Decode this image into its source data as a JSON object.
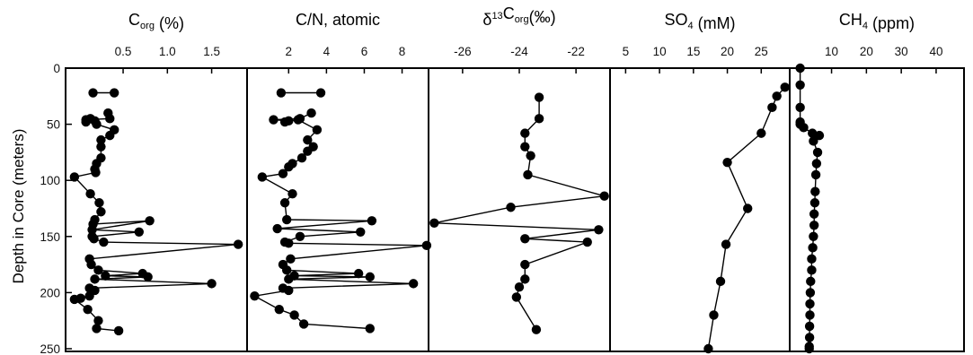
{
  "chart_data": {
    "type": "scatter",
    "y_axis": {
      "label": "Depth in Core (meters)",
      "range": [
        0,
        250
      ],
      "inverted": true,
      "ticks": [
        "0",
        "50",
        "100",
        "150",
        "200",
        "250"
      ]
    },
    "panels": [
      {
        "id": "corg",
        "title_parts": [
          {
            "t": "C"
          },
          {
            "t": "org",
            "s": "sub"
          },
          {
            "t": " (%)"
          }
        ],
        "xlim": [
          -0.15,
          1.9
        ],
        "ticks": [
          {
            "v": 0.5,
            "l": "0.5"
          },
          {
            "v": 1.0,
            "l": "1.0"
          },
          {
            "v": 1.5,
            "l": "1.5"
          }
        ],
        "series": [
          {
            "x": [
              0.16,
              0.4
            ],
            "y": [
              22,
              22
            ]
          },
          {
            "x": [
              0.33,
              0.35,
              0.08,
              0.08,
              0.18,
              0.13,
              0.2,
              0.4,
              0.35,
              0.25,
              0.25,
              0.25,
              0.2,
              0.18,
              0.19,
              -0.05,
              0.13,
              0.23,
              0.25,
              0.18,
              0.16,
              0.8,
              0.15,
              0.68,
              0.15,
              0.17,
              0.28,
              1.8,
              0.12,
              0.14,
              0.22,
              0.72,
              0.3,
              0.78,
              0.18,
              1.5,
              0.12,
              0.18,
              0.12,
              0.02,
              -0.05,
              0.1,
              0.22,
              0.2,
              0.45
            ],
            "y": [
              40,
              45,
              46,
              48,
              47,
              45,
              50,
              55,
              60,
              64,
              70,
              80,
              85,
              90,
              93,
              97,
              112,
              120,
              128,
              135,
              139,
              136,
              144,
              146,
              150,
              152,
              155,
              157,
              170,
              175,
              180,
              183,
              185,
              186,
              188,
              192,
              196,
              198,
              203,
              205,
              206,
              215,
              225,
              232,
              234
            ]
          }
        ]
      },
      {
        "id": "cn",
        "title_parts": [
          {
            "t": "C/N, atomic"
          }
        ],
        "xlim": [
          -0.2,
          9.4
        ],
        "ticks": [
          {
            "v": 2,
            "l": "2"
          },
          {
            "v": 4,
            "l": "4"
          },
          {
            "v": 6,
            "l": "6"
          },
          {
            "v": 8,
            "l": "8"
          }
        ],
        "series": [
          {
            "x": [
              1.6,
              3.7
            ],
            "y": [
              22,
              22
            ]
          },
          {
            "x": [
              3.2,
              2.6,
              1.2,
              2.0,
              1.8,
              2.5,
              3.5,
              3.0,
              3.3,
              3.0,
              2.7,
              2.2,
              2.0,
              1.7,
              0.6,
              2.2,
              1.8,
              1.9,
              6.4,
              1.4,
              5.8,
              2.6,
              1.8,
              2.0,
              9.3,
              2.1,
              1.7,
              1.9,
              5.7,
              2.3,
              6.3,
              2.0,
              8.6,
              1.7,
              2.0,
              0.2,
              1.5,
              2.3,
              2.8,
              6.3
            ],
            "y": [
              40,
              45,
              46,
              47,
              48,
              46,
              55,
              64,
              70,
              74,
              80,
              85,
              88,
              94,
              97,
              112,
              120,
              135,
              136,
              143,
              146,
              150,
              155,
              156,
              158,
              170,
              175,
              180,
              183,
              185,
              186,
              188,
              192,
              196,
              198,
              203,
              215,
              220,
              228,
              232
            ]
          }
        ]
      },
      {
        "id": "d13c",
        "title_parts": [
          {
            "t": "δ"
          },
          {
            "t": "13",
            "s": "sup"
          },
          {
            "t": "C"
          },
          {
            "t": "org",
            "s": "sub"
          },
          {
            "t": "(‰)"
          }
        ],
        "xlim": [
          -27.2,
          -20.8
        ],
        "ticks": [
          {
            "v": -26,
            "l": "-26"
          },
          {
            "v": -24,
            "l": "-24"
          },
          {
            "v": -22,
            "l": "-22"
          }
        ],
        "series": [
          {
            "x": [
              -23.3,
              -23.3,
              -23.8,
              -23.8,
              -23.6,
              -23.7,
              -21.0,
              -24.3,
              -27.0,
              -21.2,
              -23.8,
              -21.6,
              -23.8,
              -23.8,
              -24.0,
              -24.1,
              -23.4
            ],
            "y": [
              26,
              45,
              58,
              70,
              78,
              95,
              114,
              124,
              138,
              144,
              152,
              155,
              175,
              188,
              195,
              204,
              233
            ]
          }
        ]
      },
      {
        "id": "so4",
        "title_parts": [
          {
            "t": "SO"
          },
          {
            "t": "4",
            "s": "sub"
          },
          {
            "t": " (mM)"
          }
        ],
        "xlim": [
          2.7,
          29.2
        ],
        "ticks": [
          {
            "v": 5,
            "l": "5"
          },
          {
            "v": 10,
            "l": "10"
          },
          {
            "v": 15,
            "l": "15"
          },
          {
            "v": 20,
            "l": "20"
          },
          {
            "v": 25,
            "l": "25"
          }
        ],
        "series": [
          {
            "x": [
              28.5,
              27.3,
              26.6,
              25.0,
              20.0,
              23.0,
              19.8,
              19.0,
              18.0,
              17.2
            ],
            "y": [
              17,
              25,
              35,
              58,
              84,
              125,
              157,
              190,
              220,
              250
            ]
          }
        ]
      },
      {
        "id": "ch4",
        "title_parts": [
          {
            "t": "CH"
          },
          {
            "t": "4",
            "s": "sub"
          },
          {
            "t": " (ppm)"
          }
        ],
        "xlim": [
          -2.0,
          48.0
        ],
        "ticks": [
          {
            "v": 10,
            "l": "10"
          },
          {
            "v": 20,
            "l": "20"
          },
          {
            "v": 30,
            "l": "30"
          },
          {
            "v": 40,
            "l": "40"
          }
        ],
        "series": [
          {
            "x": [
              1.0,
              1.0,
              1.0,
              1.0,
              1.0,
              2.0,
              4.5,
              6.5,
              4.8,
              6.0,
              5.7,
              5.5,
              5.3,
              5.2,
              5.0,
              5.0,
              4.8,
              4.6,
              4.3,
              4.3,
              4.0,
              3.9,
              3.8,
              3.8,
              3.7,
              3.7,
              3.6,
              3.6
            ],
            "y": [
              0,
              15,
              35,
              48,
              50,
              53,
              58,
              60,
              65,
              75,
              85,
              95,
              110,
              120,
              130,
              140,
              150,
              160,
              170,
              180,
              190,
              200,
              210,
              220,
              230,
              240,
              248,
              250
            ]
          }
        ]
      }
    ]
  }
}
